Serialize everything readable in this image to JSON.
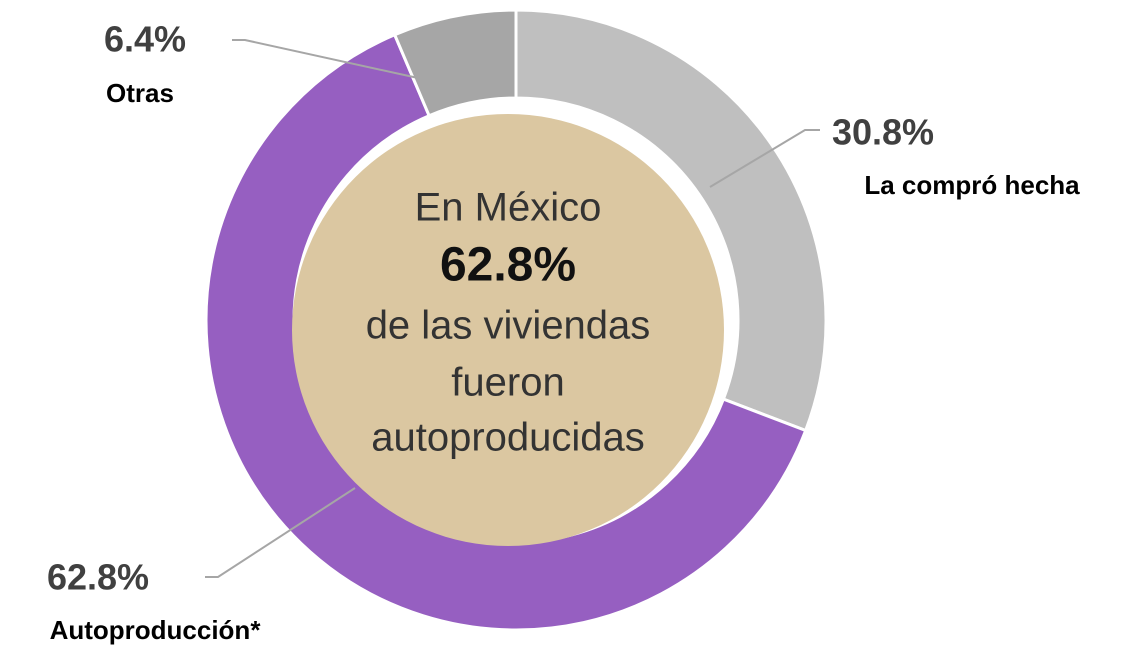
{
  "chart_data": {
    "type": "donut",
    "categories": [
      "La compró hecha",
      "Autoproducción*",
      "Otras"
    ],
    "values": [
      30.8,
      62.8,
      6.4
    ],
    "value_labels": [
      "30.8%",
      "62.8%",
      "6.4%"
    ],
    "colors": [
      "#bfbfbf",
      "#965fc1",
      "#a6a6a6"
    ],
    "center_color": "#dbc7a1",
    "center_text": [
      "En México",
      "62.8%",
      "de las viviendas",
      "fueron",
      "autoproducidas"
    ]
  }
}
